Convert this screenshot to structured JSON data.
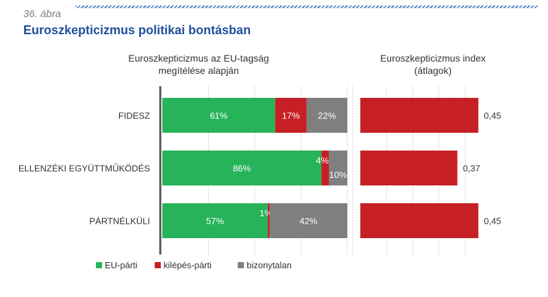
{
  "figure": {
    "label": "36. ábra",
    "title": "Euroszkepticizmus politikai bontásban"
  },
  "chart_data": [
    {
      "type": "bar",
      "orientation": "horizontal",
      "stacked": true,
      "title_lines": [
        "Euroszkepticizmus az EU-tagság",
        "megítélése alapján"
      ],
      "categories": [
        "FIDESZ",
        "ELLENZÉKI EGYÜTTMŰKÖDÉS",
        "PÁRTNÉLKÜLI"
      ],
      "series": [
        {
          "name": "EU-párti",
          "color": "#27b35a",
          "values": [
            61,
            86,
            57
          ]
        },
        {
          "name": "kilépés-párti",
          "color": "#c62026",
          "values": [
            17,
            4,
            1
          ]
        },
        {
          "name": "bizonytalan",
          "color": "#7f7f7f",
          "values": [
            22,
            10,
            42
          ]
        }
      ],
      "labels": [
        [
          "61%",
          "17%",
          "22%"
        ],
        [
          "86%",
          "4%",
          "10%"
        ],
        [
          "57%",
          "1%",
          "42%"
        ]
      ],
      "xlim": [
        0,
        100
      ],
      "grid": true,
      "legend_position": "bottom-left"
    },
    {
      "type": "bar",
      "orientation": "horizontal",
      "title_lines": [
        "Euroszkepticizmus index",
        "(átlagok)"
      ],
      "categories": [
        "FIDESZ",
        "ELLENZÉKI EGYÜTTMŰKÖDÉS",
        "PÁRTNÉLKÜLI"
      ],
      "color": "#c62026",
      "values": [
        0.45,
        0.37,
        0.45
      ],
      "value_labels": [
        "0,45",
        "0,37",
        "0,45"
      ],
      "grid": true
    }
  ]
}
